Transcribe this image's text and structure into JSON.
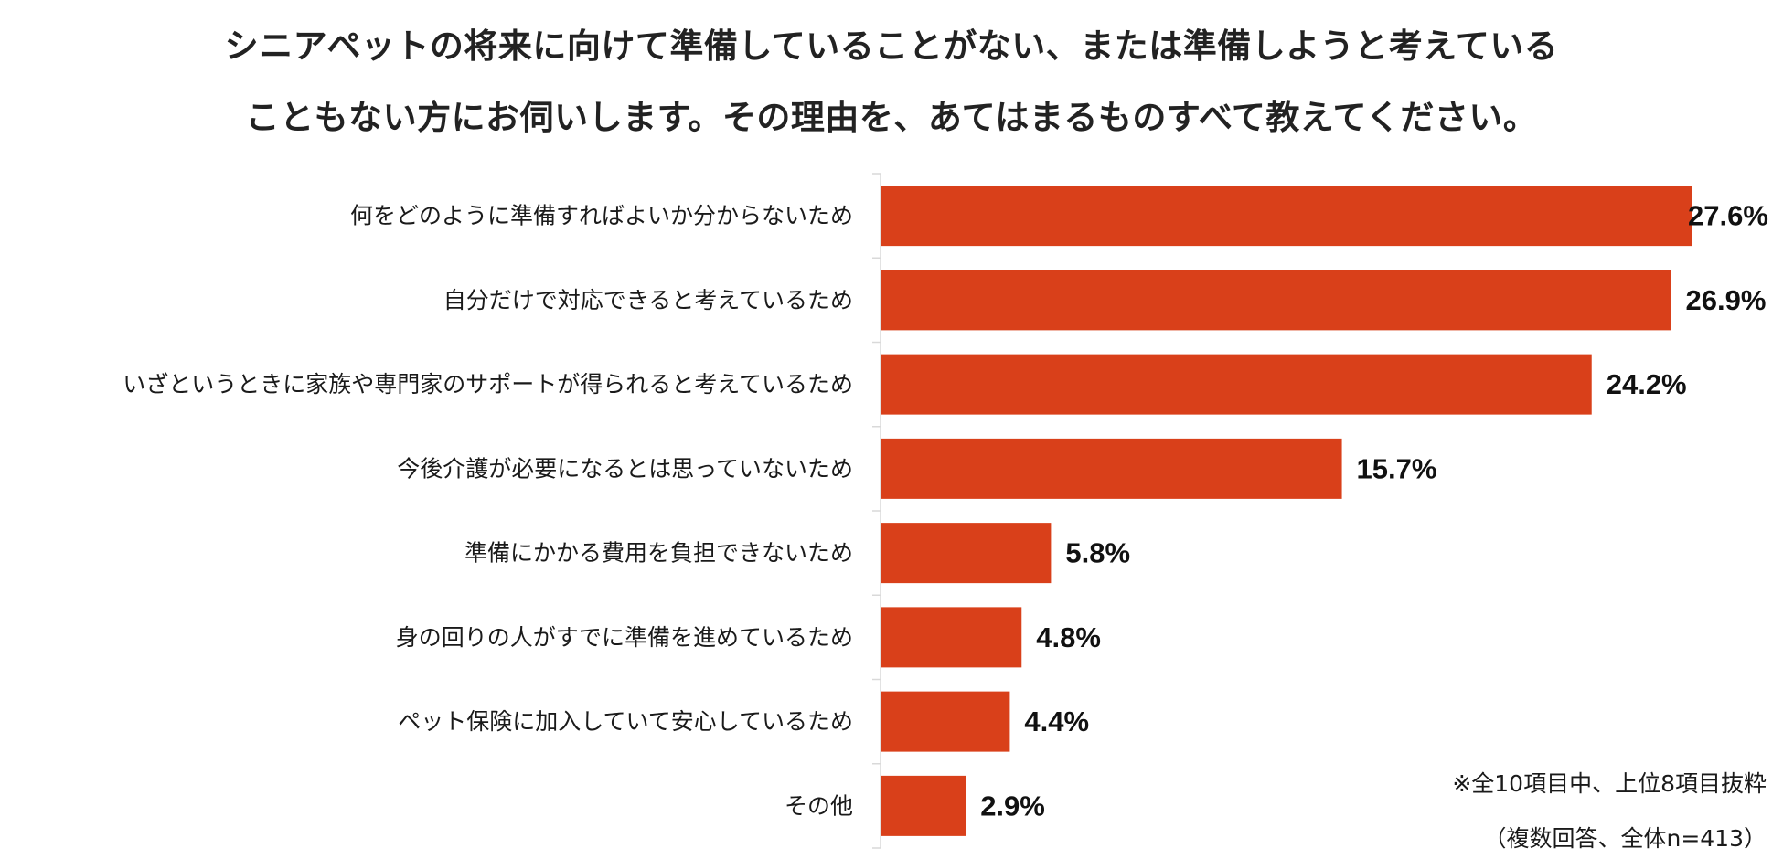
{
  "chart_data": {
    "type": "bar",
    "orientation": "horizontal",
    "title_lines": [
      "シニアペットの将来に向けて準備していることがない、または準備しようと考えている",
      "こともない方にお伺いします。その理由を、あてはまるものすべて教えてください。"
    ],
    "categories": [
      "何をどのように準備すればよいか分からないため",
      "自分だけで対応できると考えているため",
      "いざというときに家族や専門家のサポートが得られると考えているため",
      "今後介護が必要になるとは思っていないため",
      "準備にかかる費用を負担できないため",
      "身の回りの人がすでに準備を進めているため",
      "ペット保険に加入していて安心しているため",
      "その他"
    ],
    "values": [
      27.6,
      26.9,
      24.2,
      15.7,
      5.8,
      4.8,
      4.4,
      2.9
    ],
    "value_labels": [
      "27.6%",
      "26.9%",
      "24.2%",
      "15.7%",
      "5.8%",
      "4.8%",
      "4.4%",
      "2.9%"
    ],
    "xlim": [
      0,
      27.6
    ],
    "grid": false,
    "bar_color": "#d9401a"
  },
  "notes": {
    "line1": "※全10項目中、上位8項目抜粋",
    "line2": "（複数回答、全体n=413）"
  }
}
